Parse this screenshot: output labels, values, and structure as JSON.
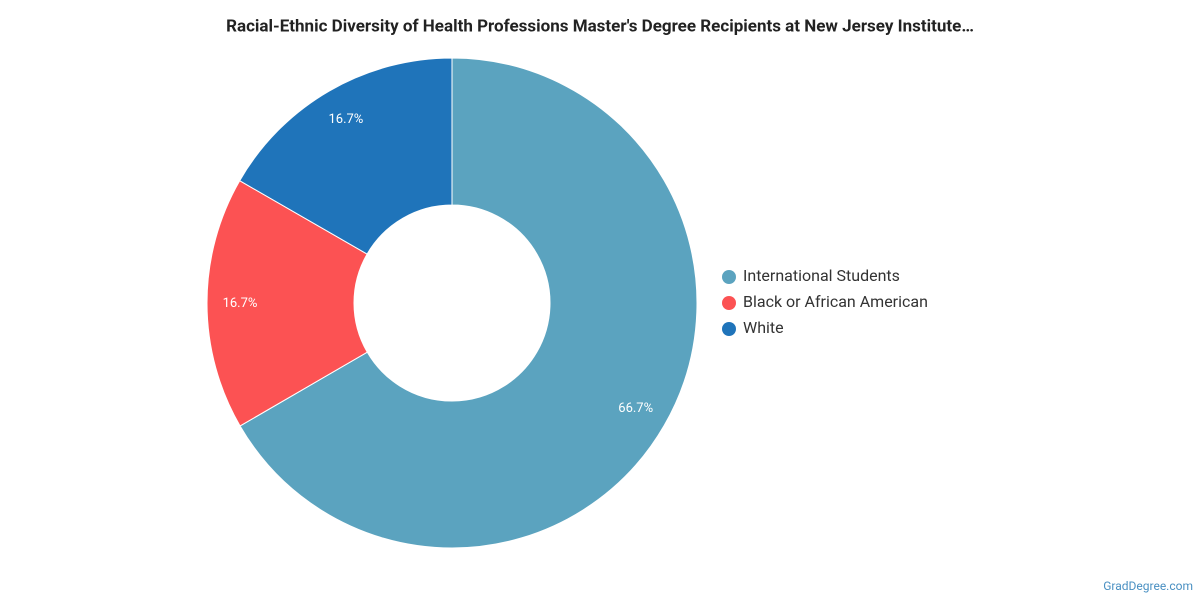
{
  "chart_data": {
    "type": "donut",
    "title": "Racial-Ethnic Diversity of Health Professions Master's Degree Recipients at New Jersey Institute…",
    "categories": [
      "International Students",
      "Black or African American",
      "White"
    ],
    "values": [
      66.7,
      16.7,
      16.7
    ],
    "value_labels": [
      "66.7%",
      "16.7%",
      "16.7%"
    ],
    "colors": [
      "#5ba3bf",
      "#fc5253",
      "#1f74ba"
    ],
    "legend_position": "right"
  },
  "watermark": "GradDegree.com"
}
